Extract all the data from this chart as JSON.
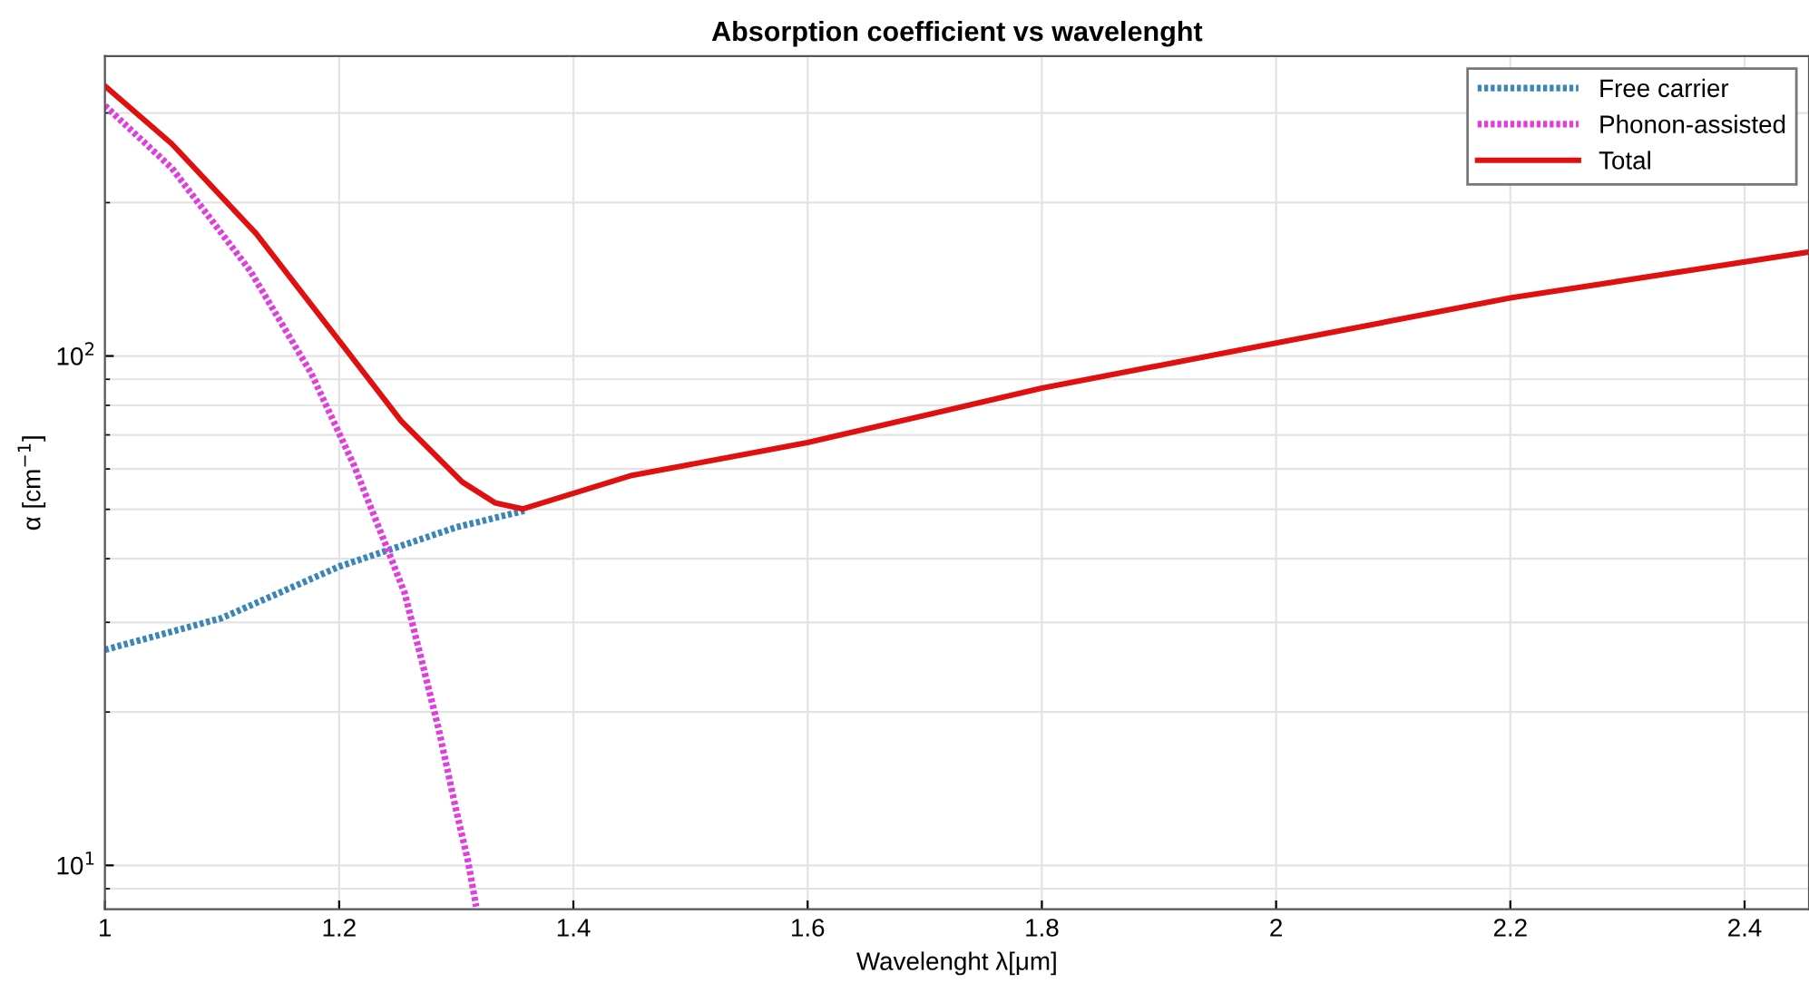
{
  "chart_data": {
    "type": "line",
    "title": "Absorption coefficient vs wavelenght",
    "xlabel": "Wavelenght λ[μm]",
    "ylabel": "α [cm$^{−1}$]",
    "xlim": [
      1,
      2.455
    ],
    "xticks": [
      1,
      1.2,
      1.4,
      1.6,
      1.8,
      2,
      2.2,
      2.4
    ],
    "ylim": [
      8.2,
      388
    ],
    "yticks": [
      {
        "value": 10,
        "label": "10$^{1}$"
      },
      {
        "value": 100,
        "label": "10$^{2}$"
      }
    ],
    "log": "y",
    "grid": true,
    "legend": "top right",
    "series": [
      {
        "name": "Free carrier",
        "color": "#3a86b8",
        "line_style": "dotted",
        "x": [
          1,
          1.1,
          1.2,
          1.3,
          1.36
        ],
        "values": [
          26.5,
          30.6,
          38.6,
          46.1,
          49.8
        ]
      },
      {
        "name": "Phonon-assisted",
        "color": "#e03ce0",
        "line_style": "dotted",
        "x": [
          1,
          1.057,
          1.124,
          1.176,
          1.212,
          1.243,
          1.256,
          1.27,
          1.285,
          1.3,
          1.31,
          1.317
        ],
        "values": [
          310,
          234,
          147,
          92.6,
          61.5,
          40.8,
          34.2,
          25.5,
          18.5,
          12.8,
          10.2,
          8.3
        ]
      },
      {
        "name": "Total",
        "color": "#e01010",
        "line_style": "solid",
        "x": [
          1,
          1.057,
          1.129,
          1.2016,
          1.253,
          1.305,
          1.333,
          1.357,
          1.45,
          1.6,
          1.8,
          2.0,
          2.2,
          2.455
        ],
        "values": [
          339,
          261,
          174,
          106,
          74.5,
          56.6,
          51.5,
          50.1,
          58.3,
          67.6,
          86.5,
          106,
          130,
          160
        ]
      }
    ]
  }
}
